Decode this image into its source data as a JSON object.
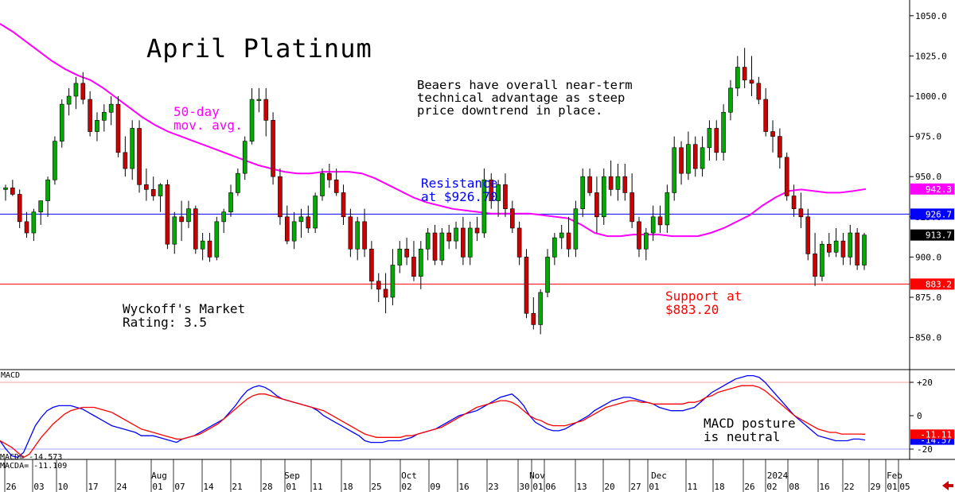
{
  "colors": {
    "up": "#00aa00",
    "down": "#cc0000",
    "ma": "#ff00ff",
    "resistance": "#0000ff",
    "support": "#ff0000",
    "macd": "#0000ff",
    "macda": "#ff0000"
  },
  "chart_data": [
    {
      "type": "candlestick",
      "title": "April Platinum",
      "ylim": [
        835,
        1055
      ],
      "yticks": [
        850.0,
        875.0,
        900.0,
        925.0,
        950.0,
        975.0,
        1000.0,
        1025.0,
        1050.0
      ],
      "ytick_labels": [
        "850.0",
        "875.0",
        "900.0",
        "925.0",
        "950.0",
        "975.0",
        "1000.0",
        "1025.0",
        "1050.0"
      ],
      "x_day_labels": [
        "26",
        "03",
        "10",
        "17",
        "24",
        "01",
        "07",
        "14",
        "21",
        "28",
        "01",
        "11",
        "18",
        "25",
        "02",
        "09",
        "16",
        "23",
        "30",
        "01",
        "06",
        "13",
        "20",
        "27",
        "01",
        "11",
        "18",
        "26",
        "02",
        "08",
        "16",
        "22",
        "29",
        "01",
        "05"
      ],
      "x_month_labels": [
        "Aug",
        "Sep",
        "Oct",
        "Nov",
        "Dec",
        "2024",
        "Feb"
      ],
      "price_tags": [
        {
          "label": "942.3",
          "value": 942.3,
          "color": "#ff00ff"
        },
        {
          "label": "926.7",
          "value": 926.7,
          "color": "#0000ff"
        },
        {
          "label": "913.7",
          "value": 913.7,
          "color": "#000000"
        },
        {
          "label": "883.2",
          "value": 883.2,
          "color": "#ff0000"
        }
      ],
      "resistance": 926.7,
      "support": 883.2,
      "annotations": {
        "ma_label": "50-day\nmov. avg.",
        "commentary": "Beaers have overall near-term\ntechnical advantage as steep\nprice downtrend in place.",
        "resistance_label": "Resistance\nat $926.70",
        "support_label": "Support at\n$883.20",
        "rating": "Wyckoff's Market\nRating: 3.5"
      },
      "ma_50day": [
        1045,
        1040,
        1034,
        1028,
        1022,
        1017,
        1013,
        1010,
        1005,
        999,
        993,
        987,
        982,
        978,
        975,
        972,
        969,
        966,
        963,
        960,
        957,
        955,
        953,
        952,
        952,
        953,
        953,
        953,
        952,
        949,
        945,
        941,
        937,
        934,
        932,
        930,
        929,
        928,
        927,
        927,
        927,
        927,
        926,
        925,
        924,
        920,
        915,
        913,
        913,
        914,
        914,
        914,
        913,
        913,
        913,
        915,
        918,
        922,
        926,
        932,
        937,
        941,
        942,
        941,
        940,
        940,
        941,
        942.3
      ],
      "candles": [
        [
          942,
          945,
          935,
          943
        ],
        [
          943,
          948,
          938,
          939
        ],
        [
          939,
          942,
          918,
          922
        ],
        [
          922,
          928,
          912,
          915
        ],
        [
          915,
          930,
          910,
          928
        ],
        [
          928,
          935,
          920,
          935
        ],
        [
          935,
          950,
          925,
          948
        ],
        [
          948,
          975,
          945,
          972
        ],
        [
          972,
          998,
          968,
          995
        ],
        [
          995,
          1005,
          988,
          1000
        ],
        [
          1000,
          1012,
          992,
          1008
        ],
        [
          1008,
          1015,
          995,
          998
        ],
        [
          998,
          1003,
          975,
          978
        ],
        [
          978,
          990,
          972,
          985
        ],
        [
          985,
          995,
          978,
          990
        ],
        [
          990,
          1000,
          982,
          995
        ],
        [
          995,
          1000,
          962,
          965
        ],
        [
          965,
          975,
          950,
          955
        ],
        [
          955,
          985,
          948,
          980
        ],
        [
          980,
          985,
          940,
          945
        ],
        [
          945,
          955,
          935,
          942
        ],
        [
          942,
          950,
          935,
          938
        ],
        [
          938,
          946,
          928,
          945
        ],
        [
          945,
          948,
          905,
          908
        ],
        [
          908,
          928,
          902,
          925
        ],
        [
          925,
          935,
          910,
          922
        ],
        [
          922,
          935,
          918,
          930
        ],
        [
          930,
          932,
          902,
          905
        ],
        [
          905,
          915,
          898,
          910
        ],
        [
          910,
          915,
          897,
          900
        ],
        [
          900,
          925,
          898,
          922
        ],
        [
          922,
          930,
          915,
          928
        ],
        [
          928,
          945,
          925,
          940
        ],
        [
          940,
          955,
          938,
          952
        ],
        [
          952,
          975,
          948,
          972
        ],
        [
          972,
          1005,
          970,
          998
        ],
        [
          998,
          1005,
          990,
          998
        ],
        [
          998,
          1005,
          975,
          985
        ],
        [
          985,
          990,
          945,
          950
        ],
        [
          950,
          955,
          920,
          925
        ],
        [
          925,
          932,
          908,
          910
        ],
        [
          910,
          928,
          905,
          922
        ],
        [
          922,
          930,
          912,
          925
        ],
        [
          925,
          932,
          915,
          918
        ],
        [
          918,
          940,
          915,
          938
        ],
        [
          938,
          955,
          935,
          952
        ],
        [
          952,
          958,
          943,
          948
        ],
        [
          948,
          955,
          938,
          940
        ],
        [
          940,
          945,
          920,
          925
        ],
        [
          925,
          930,
          900,
          905
        ],
        [
          905,
          925,
          898,
          922
        ],
        [
          922,
          930,
          900,
          905
        ],
        [
          905,
          910,
          880,
          885
        ],
        [
          885,
          890,
          872,
          880
        ],
        [
          880,
          890,
          865,
          875
        ],
        [
          875,
          905,
          870,
          895
        ],
        [
          895,
          910,
          890,
          905
        ],
        [
          905,
          912,
          895,
          900
        ],
        [
          900,
          910,
          885,
          888
        ],
        [
          888,
          910,
          880,
          905
        ],
        [
          905,
          918,
          898,
          915
        ],
        [
          915,
          920,
          895,
          898
        ],
        [
          898,
          918,
          895,
          915
        ],
        [
          915,
          920,
          905,
          910
        ],
        [
          910,
          922,
          905,
          918
        ],
        [
          918,
          925,
          895,
          900
        ],
        [
          900,
          922,
          895,
          918
        ],
        [
          918,
          925,
          910,
          915
        ],
        [
          915,
          955,
          912,
          948
        ],
        [
          948,
          952,
          930,
          935
        ],
        [
          935,
          948,
          925,
          945
        ],
        [
          945,
          952,
          925,
          930
        ],
        [
          930,
          935,
          915,
          918
        ],
        [
          918,
          922,
          895,
          900
        ],
        [
          900,
          905,
          862,
          865
        ],
        [
          865,
          875,
          855,
          858
        ],
        [
          858,
          880,
          852,
          878
        ],
        [
          878,
          905,
          875,
          900
        ],
        [
          900,
          915,
          895,
          912
        ],
        [
          912,
          920,
          905,
          915
        ],
        [
          915,
          925,
          900,
          905
        ],
        [
          905,
          935,
          900,
          930
        ],
        [
          930,
          955,
          925,
          950
        ],
        [
          950,
          955,
          938,
          940
        ],
        [
          940,
          950,
          915,
          925
        ],
        [
          925,
          955,
          920,
          950
        ],
        [
          950,
          960,
          938,
          942
        ],
        [
          942,
          958,
          935,
          950
        ],
        [
          950,
          958,
          935,
          940
        ],
        [
          940,
          952,
          918,
          922
        ],
        [
          922,
          925,
          900,
          905
        ],
        [
          905,
          918,
          898,
          915
        ],
        [
          915,
          932,
          910,
          925
        ],
        [
          925,
          932,
          915,
          920
        ],
        [
          920,
          945,
          915,
          940
        ],
        [
          940,
          975,
          935,
          968
        ],
        [
          968,
          972,
          945,
          952
        ],
        [
          952,
          978,
          948,
          970
        ],
        [
          970,
          975,
          950,
          955
        ],
        [
          955,
          975,
          950,
          968
        ],
        [
          968,
          985,
          960,
          980
        ],
        [
          980,
          985,
          960,
          965
        ],
        [
          965,
          995,
          960,
          990
        ],
        [
          990,
          1010,
          985,
          1005
        ],
        [
          1005,
          1025,
          1000,
          1018
        ],
        [
          1018,
          1030,
          1005,
          1010
        ],
        [
          1010,
          1025,
          1000,
          1008
        ],
        [
          1008,
          1012,
          995,
          998
        ],
        [
          998,
          1005,
          975,
          978
        ],
        [
          978,
          985,
          965,
          975
        ],
        [
          975,
          980,
          955,
          962
        ],
        [
          962,
          965,
          935,
          938
        ],
        [
          938,
          945,
          925,
          930
        ],
        [
          930,
          940,
          918,
          925
        ],
        [
          925,
          930,
          898,
          902
        ],
        [
          902,
          915,
          882,
          888
        ],
        [
          888,
          910,
          885,
          908
        ],
        [
          908,
          915,
          900,
          903
        ],
        [
          903,
          918,
          900,
          910
        ],
        [
          910,
          915,
          895,
          900
        ],
        [
          900,
          920,
          895,
          915
        ],
        [
          915,
          918,
          892,
          895
        ],
        [
          895,
          915,
          892,
          913.7
        ]
      ]
    },
    {
      "type": "line",
      "title": "MACD",
      "ylim": [
        -25,
        28
      ],
      "yticks": [
        20,
        0,
        -20
      ],
      "ytick_labels": [
        "+20",
        "0",
        "-20"
      ],
      "value_labels": [
        "MACD=  -14.573",
        "MACDA= -11.109"
      ],
      "annotation": "MACD posture\nis neutral",
      "series": [
        {
          "name": "MACD",
          "final": -14.573,
          "final_label": "-14.57",
          "values": [
            -15,
            -20,
            -24,
            -25,
            -22,
            -14,
            -6,
            -1,
            3,
            5,
            6,
            6,
            6,
            5,
            4,
            2,
            0,
            -2,
            -4,
            -6,
            -7,
            -8,
            -9,
            -10,
            -12,
            -12,
            -12,
            -13,
            -14,
            -15,
            -16,
            -14,
            -13,
            -12,
            -10,
            -8,
            -6,
            -4,
            -2,
            2,
            6,
            11,
            15,
            17,
            18,
            17,
            15,
            12,
            10,
            9,
            8,
            7,
            6,
            5,
            3,
            0,
            -2,
            -4,
            -6,
            -8,
            -10,
            -12,
            -15,
            -16,
            -16,
            -16,
            -15,
            -15,
            -15,
            -14,
            -13,
            -11,
            -10,
            -9,
            -8,
            -6,
            -4,
            -2,
            0,
            1,
            2,
            3,
            5,
            7,
            9,
            11,
            12,
            13,
            10,
            6,
            0,
            -4,
            -6,
            -8,
            -9,
            -9,
            -8,
            -6,
            -4,
            -2,
            0,
            3,
            5,
            7,
            9,
            10,
            11,
            11,
            10,
            9,
            8,
            7,
            5,
            4,
            3,
            3,
            3,
            4,
            5,
            8,
            11,
            14,
            16,
            18,
            20,
            22,
            23,
            24,
            24,
            23,
            20,
            16,
            12,
            8,
            4,
            0,
            -3,
            -6,
            -9,
            -12,
            -13,
            -14,
            -15,
            -15,
            -15,
            -14,
            -14,
            -14.573
          ]
        },
        {
          "name": "MACDA",
          "final": -11.109,
          "final_label": "-11.11",
          "values": [
            -15,
            -17,
            -19,
            -22,
            -25,
            -23,
            -18,
            -13,
            -9,
            -5,
            -2,
            1,
            3,
            4,
            5,
            5,
            5,
            4,
            3,
            2,
            0,
            -2,
            -4,
            -6,
            -8,
            -9,
            -10,
            -11,
            -12,
            -13,
            -14,
            -14,
            -13,
            -12,
            -11,
            -9,
            -7,
            -5,
            -2,
            1,
            4,
            7,
            10,
            12,
            13,
            13,
            12,
            11,
            10,
            9,
            8,
            7,
            6,
            5,
            4,
            3,
            1,
            -1,
            -3,
            -5,
            -7,
            -9,
            -11,
            -12,
            -13,
            -13,
            -13,
            -13,
            -13,
            -12,
            -12,
            -11,
            -10,
            -9,
            -8,
            -7,
            -5,
            -3,
            -1,
            1,
            3,
            5,
            6,
            7,
            8,
            9,
            9,
            8,
            6,
            3,
            0,
            -2,
            -3,
            -5,
            -6,
            -6,
            -6,
            -5,
            -4,
            -3,
            -1,
            1,
            3,
            5,
            6,
            7,
            8,
            9,
            9,
            8,
            8,
            7,
            7,
            7,
            7,
            7,
            7,
            8,
            8,
            9,
            11,
            12,
            14,
            15,
            16,
            17,
            18,
            18,
            18,
            17,
            15,
            12,
            9,
            6,
            3,
            0,
            -2,
            -4,
            -6,
            -8,
            -9,
            -10,
            -10,
            -11,
            -11,
            -11,
            -11,
            -11.109
          ]
        }
      ]
    }
  ]
}
